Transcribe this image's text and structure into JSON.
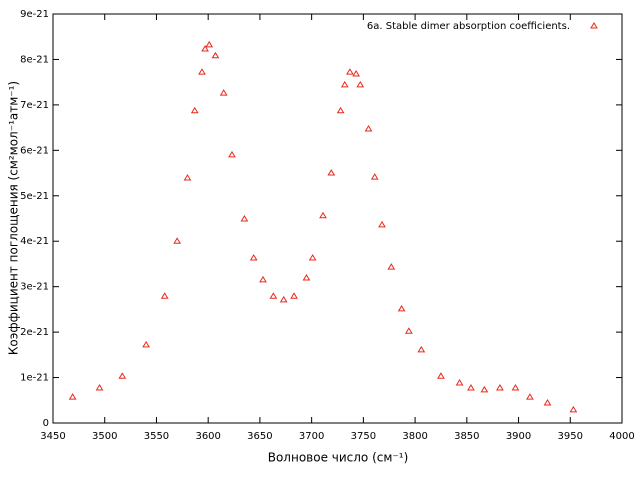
{
  "chart_data": {
    "type": "scatter",
    "xlabel": "Волновое число (см⁻¹)",
    "ylabel": "Коэффициент поглощения (см²мол⁻¹атм⁻¹)",
    "xlim": [
      3450,
      4000
    ],
    "xticks": [
      3450,
      3500,
      3550,
      3600,
      3650,
      3700,
      3750,
      3800,
      3850,
      3900,
      3950,
      4000
    ],
    "ylim": [
      0,
      9e-21
    ],
    "yticks": [
      0,
      1e-21,
      2e-21,
      3e-21,
      4e-21,
      5e-21,
      6e-21,
      7e-21,
      8e-21,
      9e-21
    ],
    "legend": "top-right",
    "series": [
      {
        "name": "6a. Stable dimer absorption coefficients.",
        "color": "#e8291c",
        "x": [
          3469,
          3495,
          3517,
          3540,
          3558,
          3570,
          3580,
          3587,
          3594,
          3597,
          3601,
          3607,
          3615,
          3623,
          3635,
          3644,
          3653,
          3663,
          3673,
          3683,
          3695,
          3701,
          3711,
          3719,
          3728,
          3732,
          3737,
          3743,
          3747,
          3755,
          3761,
          3768,
          3777,
          3787,
          3794,
          3806,
          3825,
          3843,
          3854,
          3867,
          3882,
          3897,
          3911,
          3928,
          3953
        ],
        "values": [
          5.7e-22,
          7.7e-22,
          1.03e-21,
          1.72e-21,
          2.79e-21,
          4e-21,
          5.39e-21,
          6.87e-21,
          7.72e-21,
          8.23e-21,
          8.32e-21,
          8.08e-21,
          7.26e-21,
          5.9e-21,
          4.49e-21,
          3.63e-21,
          3.15e-21,
          2.79e-21,
          2.71e-21,
          2.79e-21,
          3.19e-21,
          3.63e-21,
          4.56e-21,
          5.5e-21,
          6.87e-21,
          7.44e-21,
          7.72e-21,
          7.68e-21,
          7.44e-21,
          6.47e-21,
          5.41e-21,
          4.36e-21,
          3.43e-21,
          2.51e-21,
          2.02e-21,
          1.61e-21,
          1.03e-21,
          8.8e-22,
          7.7e-22,
          7.3e-22,
          7.7e-22,
          7.7e-22,
          5.7e-22,
          4.4e-22,
          2.9e-22
        ]
      }
    ]
  }
}
